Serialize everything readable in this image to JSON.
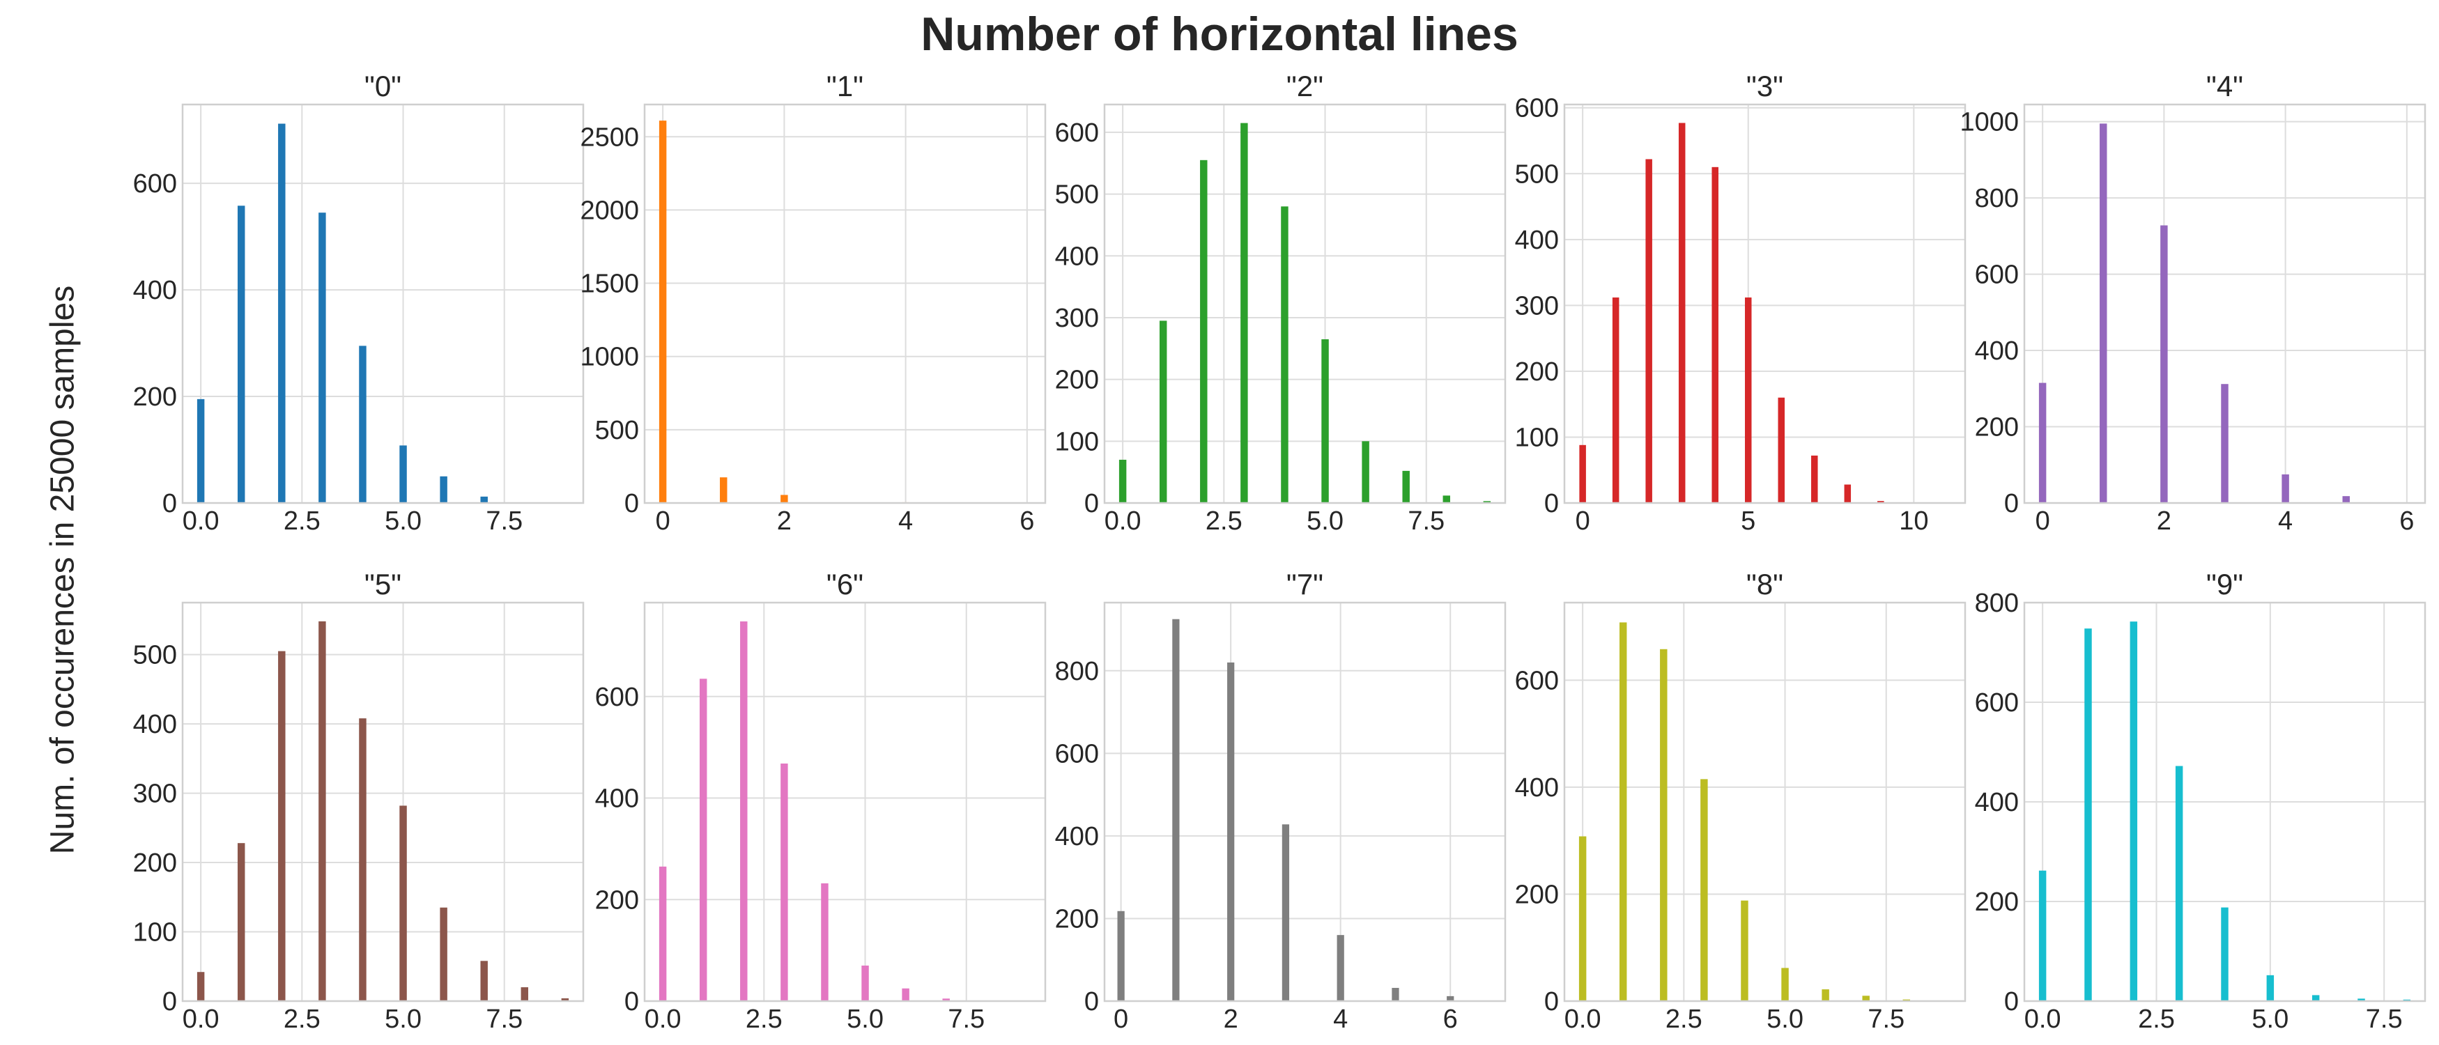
{
  "suptitle": "Number of horizontal lines",
  "ylabel": "Num. of occurences in 25000 samples",
  "chart_data": [
    {
      "type": "bar",
      "title": "\"0\"",
      "color": "#1f77b4",
      "x": [
        0,
        1,
        2,
        3,
        4,
        5,
        6,
        7
      ],
      "values": [
        195,
        558,
        712,
        545,
        295,
        108,
        50,
        12
      ],
      "xlim": [
        -0.45,
        9.45
      ],
      "ylim": [
        0,
        748
      ],
      "xticks": [
        0,
        2.5,
        5,
        7.5
      ],
      "xtick_labels": [
        "0.0",
        "2.5",
        "5.0",
        "7.5"
      ],
      "yticks": [
        0,
        200,
        400,
        600
      ],
      "bar_width": 0.18
    },
    {
      "type": "bar",
      "title": "\"1\"",
      "color": "#ff7f0e",
      "x": [
        0,
        1,
        2,
        4
      ],
      "values": [
        2610,
        175,
        55,
        5
      ],
      "xlim": [
        -0.3,
        6.3
      ],
      "ylim": [
        0,
        2720
      ],
      "xticks": [
        0,
        2,
        4,
        6
      ],
      "xtick_labels": [
        "0",
        "2",
        "4",
        "6"
      ],
      "yticks": [
        0,
        500,
        1000,
        1500,
        2000,
        2500
      ],
      "bar_width": 0.12
    },
    {
      "type": "bar",
      "title": "\"2\"",
      "color": "#2ca02c",
      "x": [
        0,
        1,
        2,
        3,
        4,
        5,
        6,
        7,
        8,
        9
      ],
      "values": [
        70,
        295,
        555,
        615,
        480,
        265,
        100,
        52,
        12,
        3
      ],
      "xlim": [
        -0.45,
        9.45
      ],
      "ylim": [
        0,
        645
      ],
      "xticks": [
        0,
        2.5,
        5,
        7.5
      ],
      "xtick_labels": [
        "0.0",
        "2.5",
        "5.0",
        "7.5"
      ],
      "yticks": [
        0,
        100,
        200,
        300,
        400,
        500,
        600
      ],
      "bar_width": 0.18
    },
    {
      "type": "bar",
      "title": "\"3\"",
      "color": "#d62728",
      "x": [
        0,
        1,
        2,
        3,
        4,
        5,
        6,
        7,
        8,
        9
      ],
      "values": [
        88,
        312,
        522,
        577,
        510,
        312,
        160,
        72,
        28,
        3
      ],
      "xlim": [
        -0.55,
        11.55
      ],
      "ylim": [
        0,
        605
      ],
      "xticks": [
        0,
        5,
        10
      ],
      "xtick_labels": [
        "0",
        "5",
        "10"
      ],
      "yticks": [
        0,
        100,
        200,
        300,
        400,
        500,
        600
      ],
      "bar_width": 0.2
    },
    {
      "type": "bar",
      "title": "\"4\"",
      "color": "#9467bd",
      "x": [
        0,
        1,
        2,
        3,
        4,
        5
      ],
      "values": [
        315,
        995,
        728,
        312,
        75,
        18
      ],
      "xlim": [
        -0.3,
        6.3
      ],
      "ylim": [
        0,
        1045
      ],
      "xticks": [
        0,
        2,
        4,
        6
      ],
      "xtick_labels": [
        "0",
        "2",
        "4",
        "6"
      ],
      "yticks": [
        0,
        200,
        400,
        600,
        800,
        1000
      ],
      "bar_width": 0.12
    },
    {
      "type": "bar",
      "title": "\"5\"",
      "color": "#8c564b",
      "x": [
        0,
        1,
        2,
        3,
        4,
        5,
        6,
        7,
        8,
        9
      ],
      "values": [
        42,
        228,
        505,
        548,
        408,
        282,
        135,
        58,
        20,
        4
      ],
      "xlim": [
        -0.45,
        9.45
      ],
      "ylim": [
        0,
        575
      ],
      "xticks": [
        0,
        2.5,
        5,
        7.5
      ],
      "xtick_labels": [
        "0.0",
        "2.5",
        "5.0",
        "7.5"
      ],
      "yticks": [
        0,
        100,
        200,
        300,
        400,
        500
      ],
      "bar_width": 0.18
    },
    {
      "type": "bar",
      "title": "\"6\"",
      "color": "#e377c2",
      "x": [
        0,
        1,
        2,
        3,
        4,
        5,
        6,
        7
      ],
      "values": [
        265,
        635,
        748,
        468,
        232,
        70,
        25,
        5
      ],
      "xlim": [
        -0.45,
        9.45
      ],
      "ylim": [
        0,
        785
      ],
      "xticks": [
        0,
        2.5,
        5,
        7.5
      ],
      "xtick_labels": [
        "0.0",
        "2.5",
        "5.0",
        "7.5"
      ],
      "yticks": [
        0,
        200,
        400,
        600
      ],
      "bar_width": 0.18
    },
    {
      "type": "bar",
      "title": "\"7\"",
      "color": "#7f7f7f",
      "x": [
        0,
        1,
        2,
        3,
        4,
        5,
        6
      ],
      "values": [
        218,
        925,
        820,
        428,
        160,
        32,
        12
      ],
      "xlim": [
        -0.3,
        7.0
      ],
      "ylim": [
        0,
        965
      ],
      "xticks": [
        0,
        2,
        4,
        6
      ],
      "xtick_labels": [
        "0",
        "2",
        "4",
        "6"
      ],
      "yticks": [
        0,
        200,
        400,
        600,
        800
      ],
      "bar_width": 0.13
    },
    {
      "type": "bar",
      "title": "\"8\"",
      "color": "#bcbd22",
      "x": [
        0,
        1,
        2,
        3,
        4,
        5,
        6,
        7,
        8
      ],
      "values": [
        308,
        708,
        658,
        415,
        188,
        62,
        22,
        10,
        3
      ],
      "xlim": [
        -0.45,
        9.45
      ],
      "ylim": [
        0,
        745
      ],
      "xticks": [
        0,
        2.5,
        5,
        7.5
      ],
      "xtick_labels": [
        "0.0",
        "2.5",
        "5.0",
        "7.5"
      ],
      "yticks": [
        0,
        200,
        400,
        600
      ],
      "bar_width": 0.18
    },
    {
      "type": "bar",
      "title": "\"9\"",
      "color": "#17becf",
      "x": [
        0,
        1,
        2,
        3,
        4,
        5,
        6,
        7,
        8
      ],
      "values": [
        262,
        748,
        762,
        472,
        188,
        52,
        12,
        5,
        3
      ],
      "xlim": [
        -0.4,
        8.4
      ],
      "ylim": [
        0,
        800
      ],
      "xticks": [
        0,
        2.5,
        5,
        7.5
      ],
      "xtick_labels": [
        "0.0",
        "2.5",
        "5.0",
        "7.5"
      ],
      "yticks": [
        0,
        200,
        400,
        600,
        800
      ],
      "bar_width": 0.16
    }
  ]
}
